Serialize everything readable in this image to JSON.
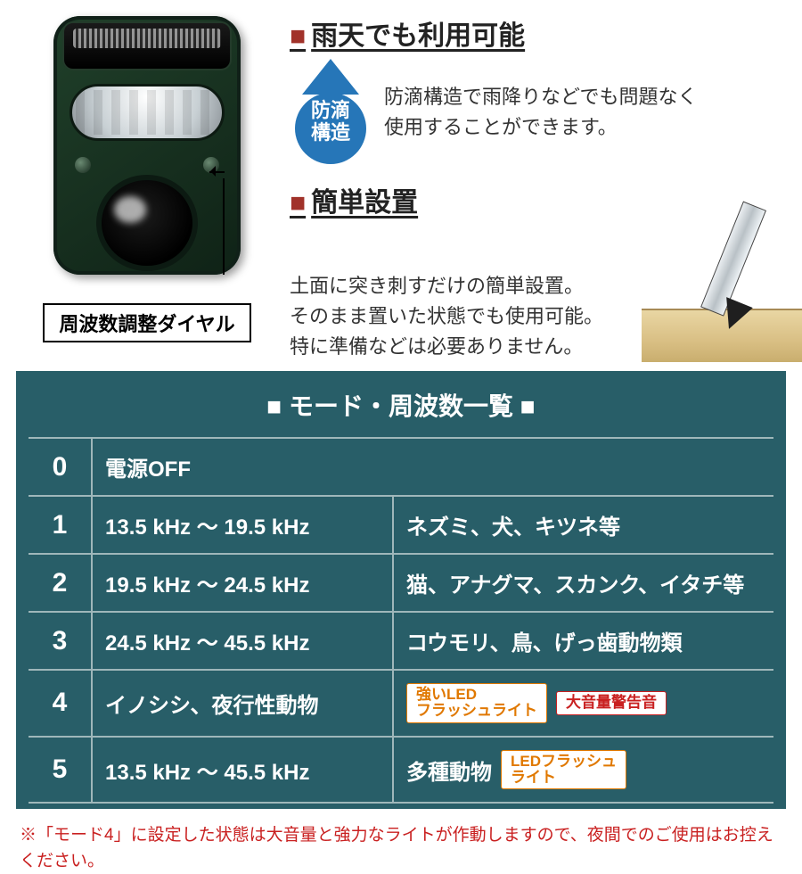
{
  "colors": {
    "heading_square": "#a1322a",
    "table_bg": "#285e68",
    "table_grid": "#9fb7ba",
    "drop_blue": "#2676b8",
    "chip_orange": "#e07800",
    "chip_red": "#c92020",
    "footnote": "#c92020",
    "device_body": "#1a3424"
  },
  "device": {
    "dial_label": "周波数調整ダイヤル"
  },
  "features": {
    "rain": {
      "title": "雨天でも利用可能",
      "badge_line1": "防滴",
      "badge_line2": "構造",
      "desc_line1": "防滴構造で雨降りなどでも問題なく",
      "desc_line2": "使用することができます。"
    },
    "install": {
      "title": "簡単設置",
      "desc_line1": "土面に突き刺すだけの簡単設置。",
      "desc_line2": "そのまま置いた状態でも使用可能。",
      "desc_line3": "特に準備などは必要ありません。"
    }
  },
  "table": {
    "title": "■ モード・周波数一覧 ■",
    "rows": [
      {
        "mode": "0",
        "freq": "電源OFF",
        "target": "",
        "span2": true
      },
      {
        "mode": "1",
        "freq": "13.5 kHz ～ 19.5 kHz",
        "target": "ネズミ、犬、キツネ等"
      },
      {
        "mode": "2",
        "freq": "19.5 kHz ～ 24.5 kHz",
        "target": "猫、アナグマ、スカンク、イタチ等"
      },
      {
        "mode": "3",
        "freq": "24.5 kHz ～ 45.5 kHz",
        "target": "コウモリ、鳥、げっ歯動物類"
      },
      {
        "mode": "4",
        "freq": "イノシシ、夜行性動物",
        "target": "",
        "chips": [
          {
            "style": "orange",
            "line1": "強いLED",
            "line2": "フラッシュライト"
          },
          {
            "style": "red",
            "line1": "大音量警告音",
            "line2": ""
          }
        ]
      },
      {
        "mode": "5",
        "freq": "13.5 kHz ～ 45.5 kHz",
        "target": "多種動物",
        "chips": [
          {
            "style": "orange",
            "line1": "LEDフラッシュ",
            "line2": "ライト"
          }
        ]
      }
    ]
  },
  "footnote": "※「モード4」に設定した状態は大音量と強力なライトが作動しますので、夜間でのご使用はお控えください。"
}
